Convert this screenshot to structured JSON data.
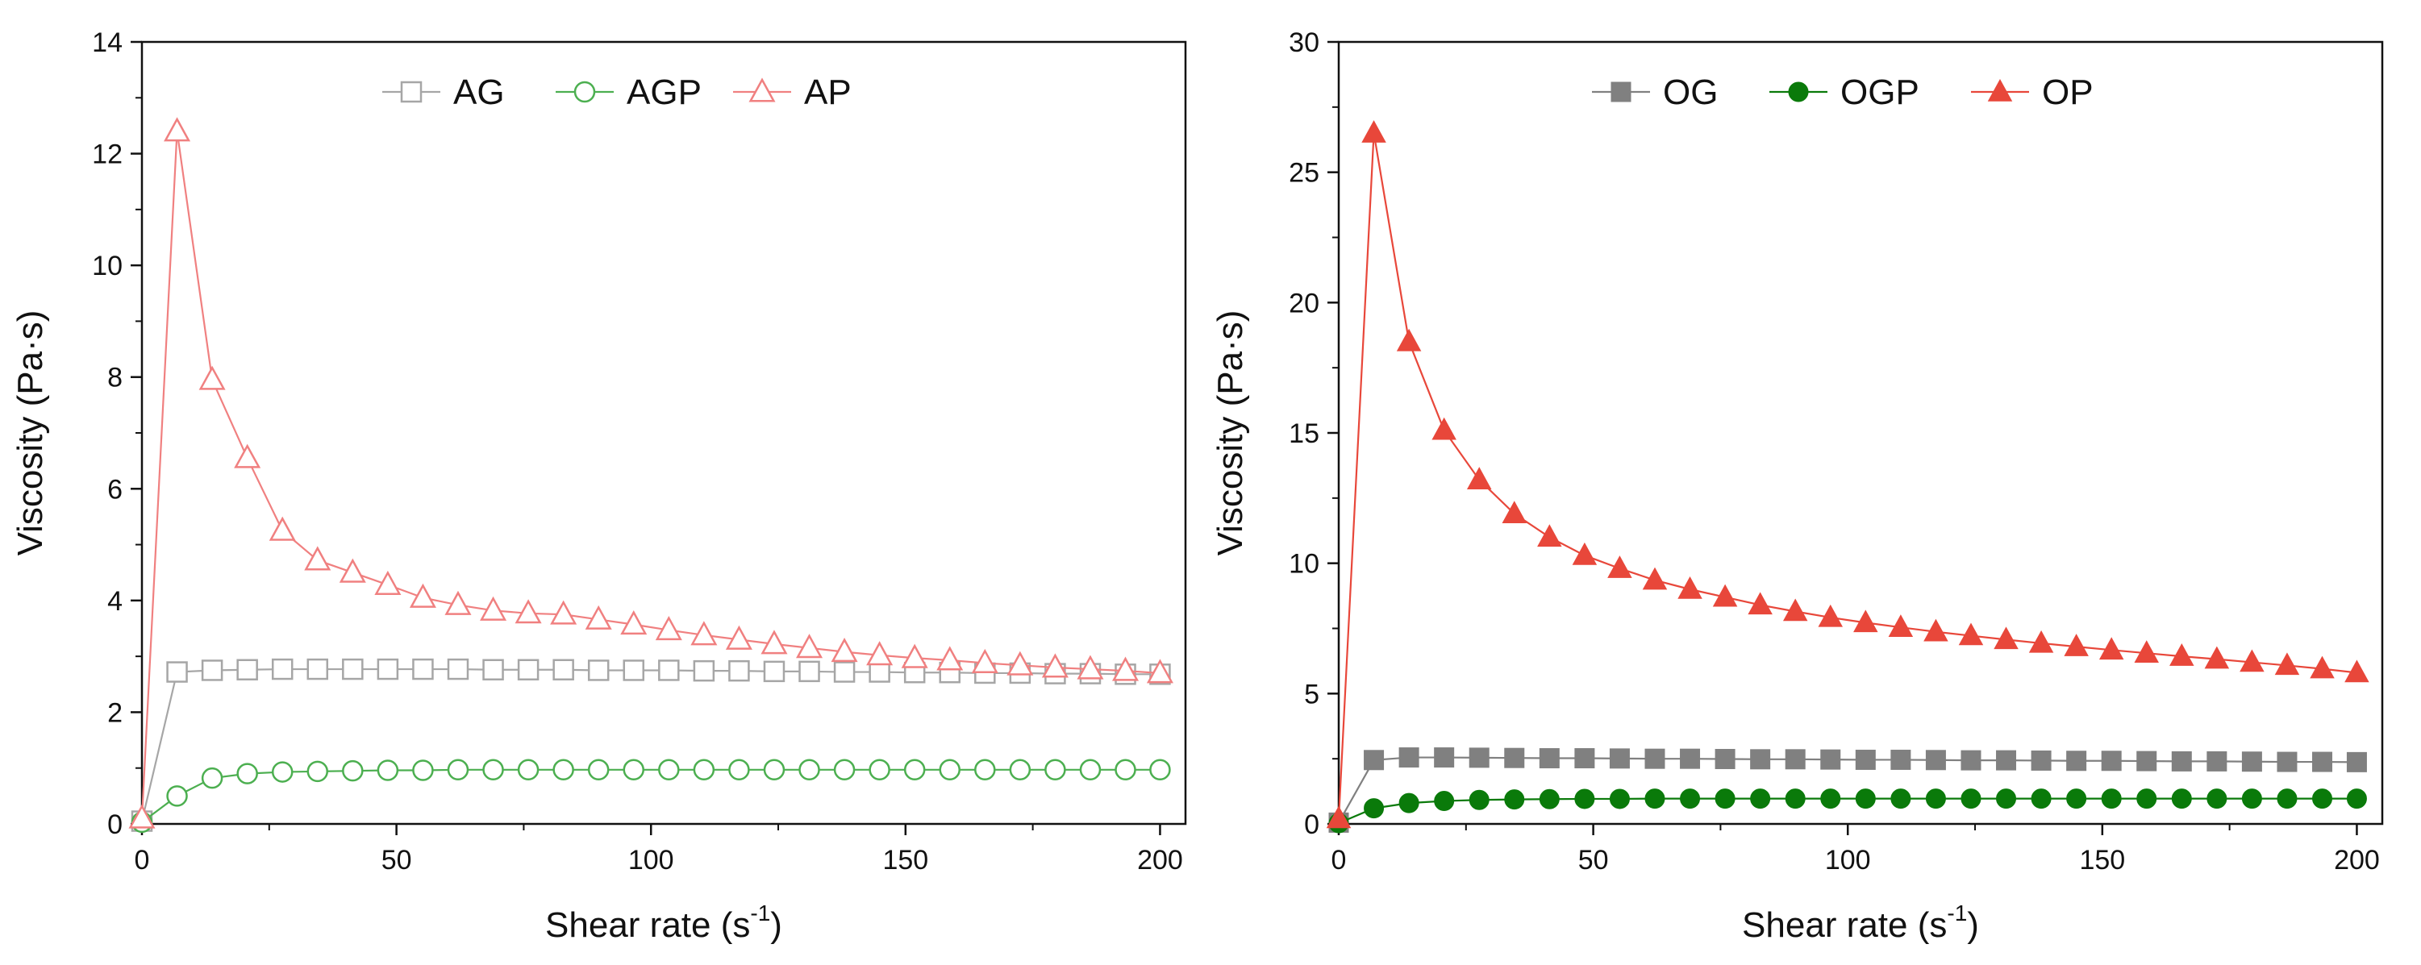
{
  "chart_data": [
    {
      "type": "line",
      "panel": "left",
      "title": "",
      "xlabel": "Shear rate (s",
      "xlabel_sup": "-1",
      "xlabel_close": ")",
      "ylabel": "Viscosity (Pa·s)",
      "xlim": [
        0,
        205
      ],
      "ylim": [
        0,
        14
      ],
      "xticks": [
        0,
        50,
        100,
        150,
        200
      ],
      "xtick_labels": [
        "0",
        "50",
        "100",
        "150",
        "200"
      ],
      "yticks": [
        0,
        2,
        4,
        6,
        8,
        10,
        12,
        14
      ],
      "ytick_labels": [
        "0",
        "2",
        "4",
        "6",
        "8",
        "10",
        "12",
        "14"
      ],
      "legend_position": "top-center",
      "x": [
        0,
        6.9,
        13.8,
        20.7,
        27.6,
        34.5,
        41.4,
        48.3,
        55.2,
        62.1,
        69,
        75.9,
        82.8,
        89.7,
        96.6,
        103.5,
        110.4,
        117.3,
        124.2,
        131.1,
        138,
        144.9,
        151.8,
        158.7,
        165.6,
        172.5,
        179.4,
        186.3,
        193.2,
        200
      ],
      "series": [
        {
          "name": "AG",
          "color": "#a6a6a6",
          "marker": "square-open",
          "values": [
            0.05,
            2.72,
            2.75,
            2.76,
            2.77,
            2.77,
            2.77,
            2.77,
            2.77,
            2.77,
            2.76,
            2.76,
            2.76,
            2.75,
            2.75,
            2.75,
            2.74,
            2.74,
            2.73,
            2.73,
            2.72,
            2.72,
            2.71,
            2.71,
            2.7,
            2.7,
            2.69,
            2.69,
            2.68,
            2.68
          ]
        },
        {
          "name": "AGP",
          "color": "#4caf50",
          "marker": "circle-open",
          "values": [
            0.03,
            0.5,
            0.82,
            0.9,
            0.93,
            0.94,
            0.95,
            0.96,
            0.96,
            0.97,
            0.97,
            0.97,
            0.97,
            0.97,
            0.97,
            0.97,
            0.97,
            0.97,
            0.97,
            0.97,
            0.97,
            0.97,
            0.97,
            0.97,
            0.97,
            0.97,
            0.97,
            0.97,
            0.97,
            0.97
          ]
        },
        {
          "name": "AP",
          "color": "#f08080",
          "marker": "triangle-open",
          "values": [
            0.1,
            12.4,
            7.95,
            6.55,
            5.25,
            4.72,
            4.5,
            4.28,
            4.05,
            3.92,
            3.82,
            3.77,
            3.75,
            3.66,
            3.57,
            3.47,
            3.38,
            3.3,
            3.22,
            3.15,
            3.08,
            3.02,
            2.97,
            2.93,
            2.88,
            2.84,
            2.8,
            2.77,
            2.74,
            2.7
          ]
        }
      ]
    },
    {
      "type": "line",
      "panel": "right",
      "title": "",
      "xlabel": "Shear rate (s",
      "xlabel_sup": "-1",
      "xlabel_close": ")",
      "ylabel": "Viscosity (Pa·s)",
      "xlim": [
        0,
        205
      ],
      "ylim": [
        0,
        30
      ],
      "xticks": [
        0,
        50,
        100,
        150,
        200
      ],
      "xtick_labels": [
        "0",
        "50",
        "100",
        "150",
        "200"
      ],
      "yticks": [
        0,
        5,
        10,
        15,
        20,
        25,
        30
      ],
      "ytick_labels": [
        "0",
        "5",
        "10",
        "15",
        "20",
        "25",
        "30"
      ],
      "legend_position": "top-center",
      "x": [
        0,
        6.9,
        13.8,
        20.7,
        27.6,
        34.5,
        41.4,
        48.3,
        55.2,
        62.1,
        69,
        75.9,
        82.8,
        89.7,
        96.6,
        103.5,
        110.4,
        117.3,
        124.2,
        131.1,
        138,
        144.9,
        151.8,
        158.7,
        165.6,
        172.5,
        179.4,
        186.3,
        193.2,
        200
      ],
      "series": [
        {
          "name": "OG",
          "color": "#808080",
          "marker": "square-filled",
          "values": [
            0.05,
            2.45,
            2.55,
            2.55,
            2.54,
            2.53,
            2.52,
            2.52,
            2.51,
            2.5,
            2.5,
            2.49,
            2.48,
            2.48,
            2.47,
            2.46,
            2.46,
            2.45,
            2.44,
            2.44,
            2.43,
            2.42,
            2.42,
            2.41,
            2.4,
            2.4,
            2.39,
            2.38,
            2.38,
            2.37
          ]
        },
        {
          "name": "OGP",
          "color": "#0a7a0a",
          "marker": "circle-filled",
          "values": [
            0.03,
            0.6,
            0.8,
            0.88,
            0.92,
            0.94,
            0.95,
            0.96,
            0.96,
            0.97,
            0.97,
            0.97,
            0.97,
            0.97,
            0.97,
            0.97,
            0.97,
            0.97,
            0.97,
            0.97,
            0.97,
            0.97,
            0.97,
            0.97,
            0.97,
            0.97,
            0.97,
            0.97,
            0.97,
            0.97
          ]
        },
        {
          "name": "OP",
          "color": "#e8473a",
          "marker": "triangle-filled",
          "values": [
            0.2,
            26.5,
            18.5,
            15.1,
            13.2,
            11.9,
            11.0,
            10.3,
            9.8,
            9.35,
            9.0,
            8.7,
            8.4,
            8.15,
            7.92,
            7.72,
            7.54,
            7.37,
            7.22,
            7.07,
            6.93,
            6.8,
            6.67,
            6.55,
            6.43,
            6.32,
            6.2,
            6.08,
            5.95,
            5.8
          ]
        }
      ]
    }
  ]
}
